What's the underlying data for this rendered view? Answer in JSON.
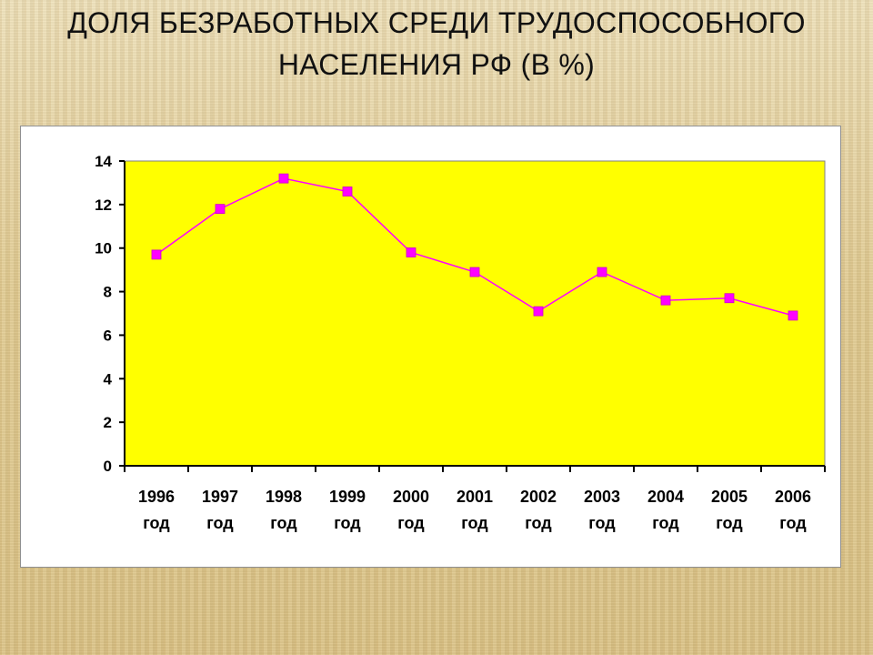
{
  "slide": {
    "title_line1": "ДОЛЯ БЕЗРАБОТНЫХ СРЕДИ ТРУДОСПОСОБНОГО",
    "title_line2": "НАСЕЛЕНИЯ   РФ (В %)"
  },
  "colors": {
    "plot_background": "#ffff00",
    "series_line": "#ff00ff",
    "marker": "#ff00ff"
  },
  "chart_data": {
    "type": "line",
    "title": "ДОЛЯ БЕЗРАБОТНЫХ СРЕДИ ТРУДОСПОСОБНОГО НАСЕЛЕНИЯ   РФ (В %)",
    "xlabel": "",
    "ylabel": "",
    "categories": [
      [
        "1996",
        "год"
      ],
      [
        "1997",
        "год"
      ],
      [
        "1998",
        "год"
      ],
      [
        "1999",
        "год"
      ],
      [
        "2000",
        "год"
      ],
      [
        "2001",
        "год"
      ],
      [
        "2002",
        "год"
      ],
      [
        "2003",
        "год"
      ],
      [
        "2004",
        "год"
      ],
      [
        "2005",
        "год"
      ],
      [
        "2006",
        "год"
      ]
    ],
    "series": [
      {
        "values": [
          9.7,
          11.8,
          13.2,
          12.6,
          9.8,
          8.9,
          7.1,
          8.9,
          7.6,
          7.7,
          6.9
        ]
      }
    ],
    "ylim": [
      0,
      14
    ],
    "yticks": [
      0,
      2,
      4,
      6,
      8,
      10,
      12,
      14
    ],
    "grid": false,
    "legend": "none",
    "marker": "square"
  }
}
